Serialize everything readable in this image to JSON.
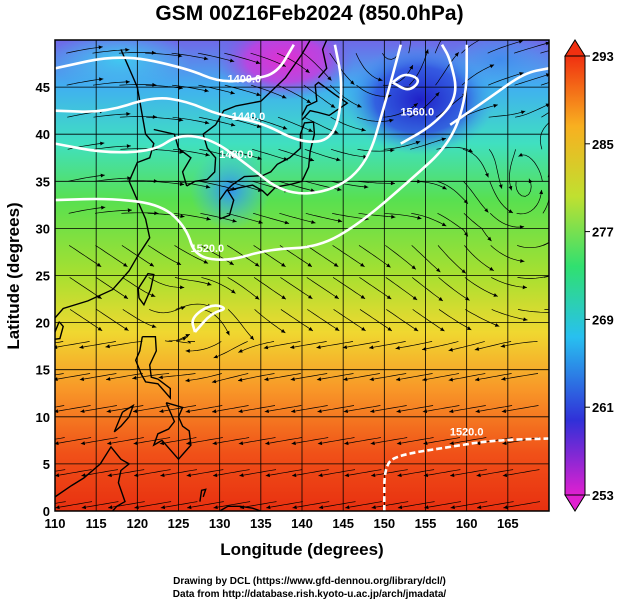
{
  "title": "GSM 00Z16Feb2024 (850.0hPa)",
  "credits": {
    "line1": "Drawing by DCL (https://www.gfd-dennou.org/library/dcl/)",
    "line2": "Data from http://database.rish.kyoto-u.ac.jp/arch/jmadata/"
  },
  "chart_data": {
    "type": "map",
    "xlabel": "Longitude (degrees)",
    "ylabel": "Latitude  (degrees)",
    "xlim": [
      110,
      170
    ],
    "ylim": [
      0,
      50
    ],
    "x_ticks": [
      110,
      115,
      120,
      125,
      130,
      135,
      140,
      145,
      150,
      155,
      160,
      165
    ],
    "y_ticks": [
      0,
      5,
      10,
      15,
      20,
      25,
      30,
      35,
      40,
      45
    ],
    "grid": true,
    "colorbar": {
      "ticks": [
        253,
        261,
        269,
        277,
        285,
        293
      ],
      "min": 253,
      "max": 293,
      "colors": [
        "#e020d0",
        "#3030d8",
        "#28c0f0",
        "#30e070",
        "#c0e030",
        "#f8b020",
        "#f03010"
      ]
    },
    "contour_labels": [
      {
        "text": "1400.0",
        "lon": 133,
        "lat": 45.5
      },
      {
        "text": "1440.0",
        "lon": 133.5,
        "lat": 41.5
      },
      {
        "text": "1480.0",
        "lon": 132,
        "lat": 37.5
      },
      {
        "text": "1520.0",
        "lon": 128.5,
        "lat": 27.5
      },
      {
        "text": "1520.0",
        "lon": 160,
        "lat": 8
      },
      {
        "text": "1560.0",
        "lon": 154,
        "lat": 42
      }
    ],
    "contours": [
      {
        "level": 1400,
        "points": [
          [
            110,
            47
          ],
          [
            118,
            48.5
          ],
          [
            126,
            47
          ],
          [
            130,
            45.5
          ],
          [
            134,
            45.8
          ],
          [
            137,
            46.5
          ],
          [
            139,
            49.5
          ]
        ]
      },
      {
        "level": 1440,
        "points": [
          [
            110,
            42.5
          ],
          [
            116,
            42.3
          ],
          [
            122,
            44
          ],
          [
            126,
            43.5
          ],
          [
            130,
            42
          ],
          [
            135,
            41.3
          ],
          [
            140,
            39
          ],
          [
            144,
            39.5
          ],
          [
            145,
            45
          ],
          [
            144,
            49.5
          ]
        ]
      },
      {
        "level": 1480,
        "points": [
          [
            110,
            39
          ],
          [
            116,
            38
          ],
          [
            122,
            38.2
          ],
          [
            125,
            40
          ],
          [
            129,
            39.5
          ],
          [
            133,
            37
          ],
          [
            138,
            33.5
          ],
          [
            144,
            34
          ],
          [
            148,
            37
          ],
          [
            150,
            43
          ],
          [
            152,
            49.5
          ]
        ]
      },
      {
        "level": 1520,
        "points": [
          [
            110,
            33
          ],
          [
            117,
            33.2
          ],
          [
            123,
            32.5
          ],
          [
            126,
            30
          ],
          [
            127,
            27
          ],
          [
            131,
            26.5
          ],
          [
            136,
            27.8
          ],
          [
            142,
            28
          ],
          [
            147,
            30.5
          ],
          [
            153,
            35
          ],
          [
            158,
            39
          ],
          [
            160,
            44
          ],
          [
            160,
            49.5
          ]
        ]
      },
      {
        "level": 1520,
        "points": [
          [
            150,
            0
          ],
          [
            150,
            5
          ],
          [
            152,
            6
          ],
          [
            158,
            6.8
          ],
          [
            163,
            7.5
          ],
          [
            170,
            7.7
          ]
        ]
      },
      {
        "level": 1560,
        "points": [
          [
            127,
            19
          ],
          [
            129,
            21
          ],
          [
            131,
            21.5
          ],
          [
            129,
            22
          ],
          [
            126.5,
            20.5
          ],
          [
            127,
            19
          ]
        ]
      },
      {
        "level": 1560,
        "points": [
          [
            151,
            45.5
          ],
          [
            153,
            44.5
          ],
          [
            154.5,
            45.8
          ],
          [
            152.5,
            46.5
          ],
          [
            151,
            45.5
          ]
        ]
      },
      {
        "level": 1560,
        "points": [
          [
            158,
            41
          ],
          [
            163,
            44
          ],
          [
            167,
            46.5
          ],
          [
            170,
            47
          ]
        ]
      },
      {
        "level": 1560,
        "points": [
          [
            152,
            39
          ],
          [
            156,
            41
          ],
          [
            159,
            44
          ],
          [
            158,
            48
          ],
          [
            157,
            49.5
          ]
        ]
      }
    ]
  }
}
